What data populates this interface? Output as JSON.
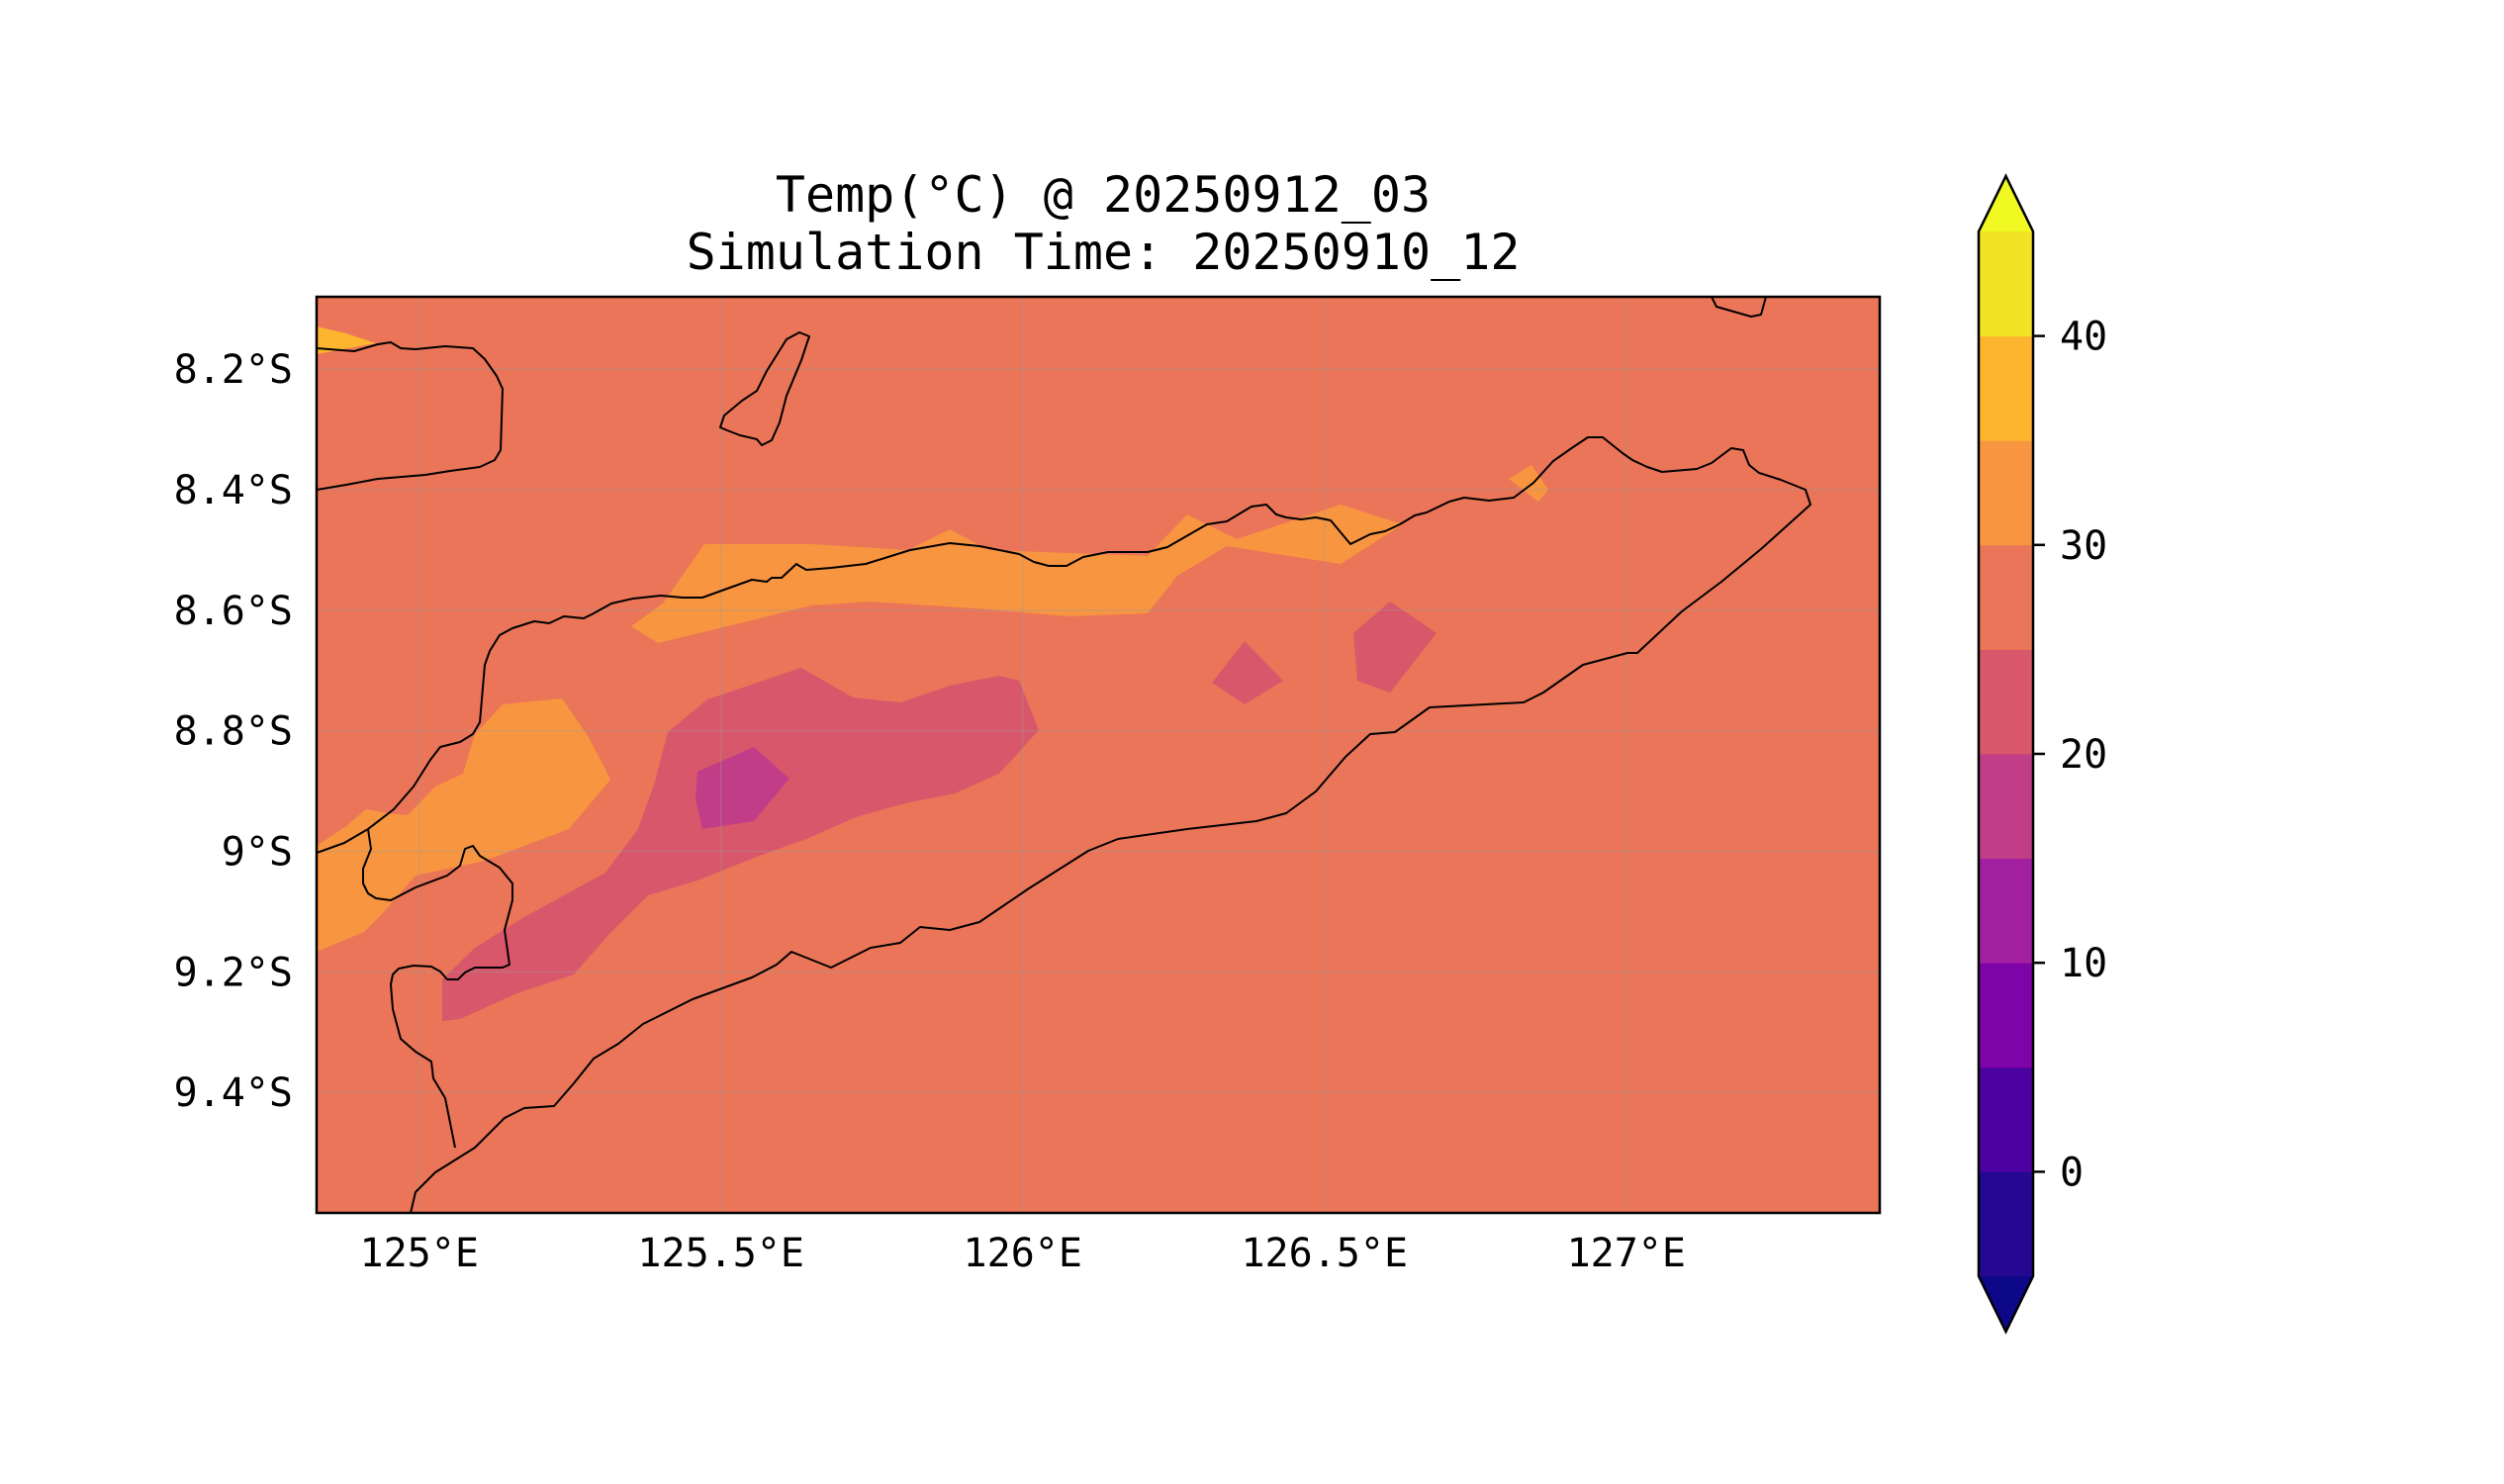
{
  "figure": {
    "title_line1": "Temp(°C) @ 20250912_03",
    "title_line2": "Simulation Time: 20250910_12"
  },
  "map": {
    "lon_range": [
      124.83,
      127.42
    ],
    "lat_range": [
      -9.6,
      -8.08
    ],
    "lon_ticks": [
      {
        "value": 125.0,
        "label": "125°E"
      },
      {
        "value": 125.5,
        "label": "125.5°E"
      },
      {
        "value": 126.0,
        "label": "126°E"
      },
      {
        "value": 126.5,
        "label": "126.5°E"
      },
      {
        "value": 127.0,
        "label": "127°E"
      }
    ],
    "lat_ticks": [
      {
        "value": -8.2,
        "label": "8.2°S"
      },
      {
        "value": -8.4,
        "label": "8.4°S"
      },
      {
        "value": -8.6,
        "label": "8.6°S"
      },
      {
        "value": -8.8,
        "label": "8.8°S"
      },
      {
        "value": -9.0,
        "label": "9°S"
      },
      {
        "value": -9.2,
        "label": "9.2°S"
      },
      {
        "value": -9.4,
        "label": "9.4°S"
      }
    ],
    "gridlines": true,
    "background_level_color": "#eb7558"
  },
  "colorbar": {
    "colormap": "plasma",
    "range": [
      -5,
      45
    ],
    "extend": "both",
    "levels": [
      {
        "min": -5,
        "max": 0,
        "color": "#240892"
      },
      {
        "min": 0,
        "max": 5,
        "color": "#4c02a1"
      },
      {
        "min": 5,
        "max": 10,
        "color": "#7e03a8"
      },
      {
        "min": 10,
        "max": 15,
        "color": "#a21fa0"
      },
      {
        "min": 15,
        "max": 20,
        "color": "#c13d87"
      },
      {
        "min": 20,
        "max": 25,
        "color": "#d8576b"
      },
      {
        "min": 25,
        "max": 30,
        "color": "#eb7558"
      },
      {
        "min": 30,
        "max": 35,
        "color": "#f89540"
      },
      {
        "min": 35,
        "max": 40,
        "color": "#fdb42f"
      },
      {
        "min": 40,
        "max": 45,
        "color": "#f2e326"
      }
    ],
    "under_color": "#0d0887",
    "over_color": "#f0f921",
    "ticks": [
      {
        "value": 0,
        "label": "0"
      },
      {
        "value": 10,
        "label": "10"
      },
      {
        "value": 20,
        "label": "20"
      },
      {
        "value": 30,
        "label": "30"
      },
      {
        "value": 40,
        "label": "40"
      }
    ]
  }
}
